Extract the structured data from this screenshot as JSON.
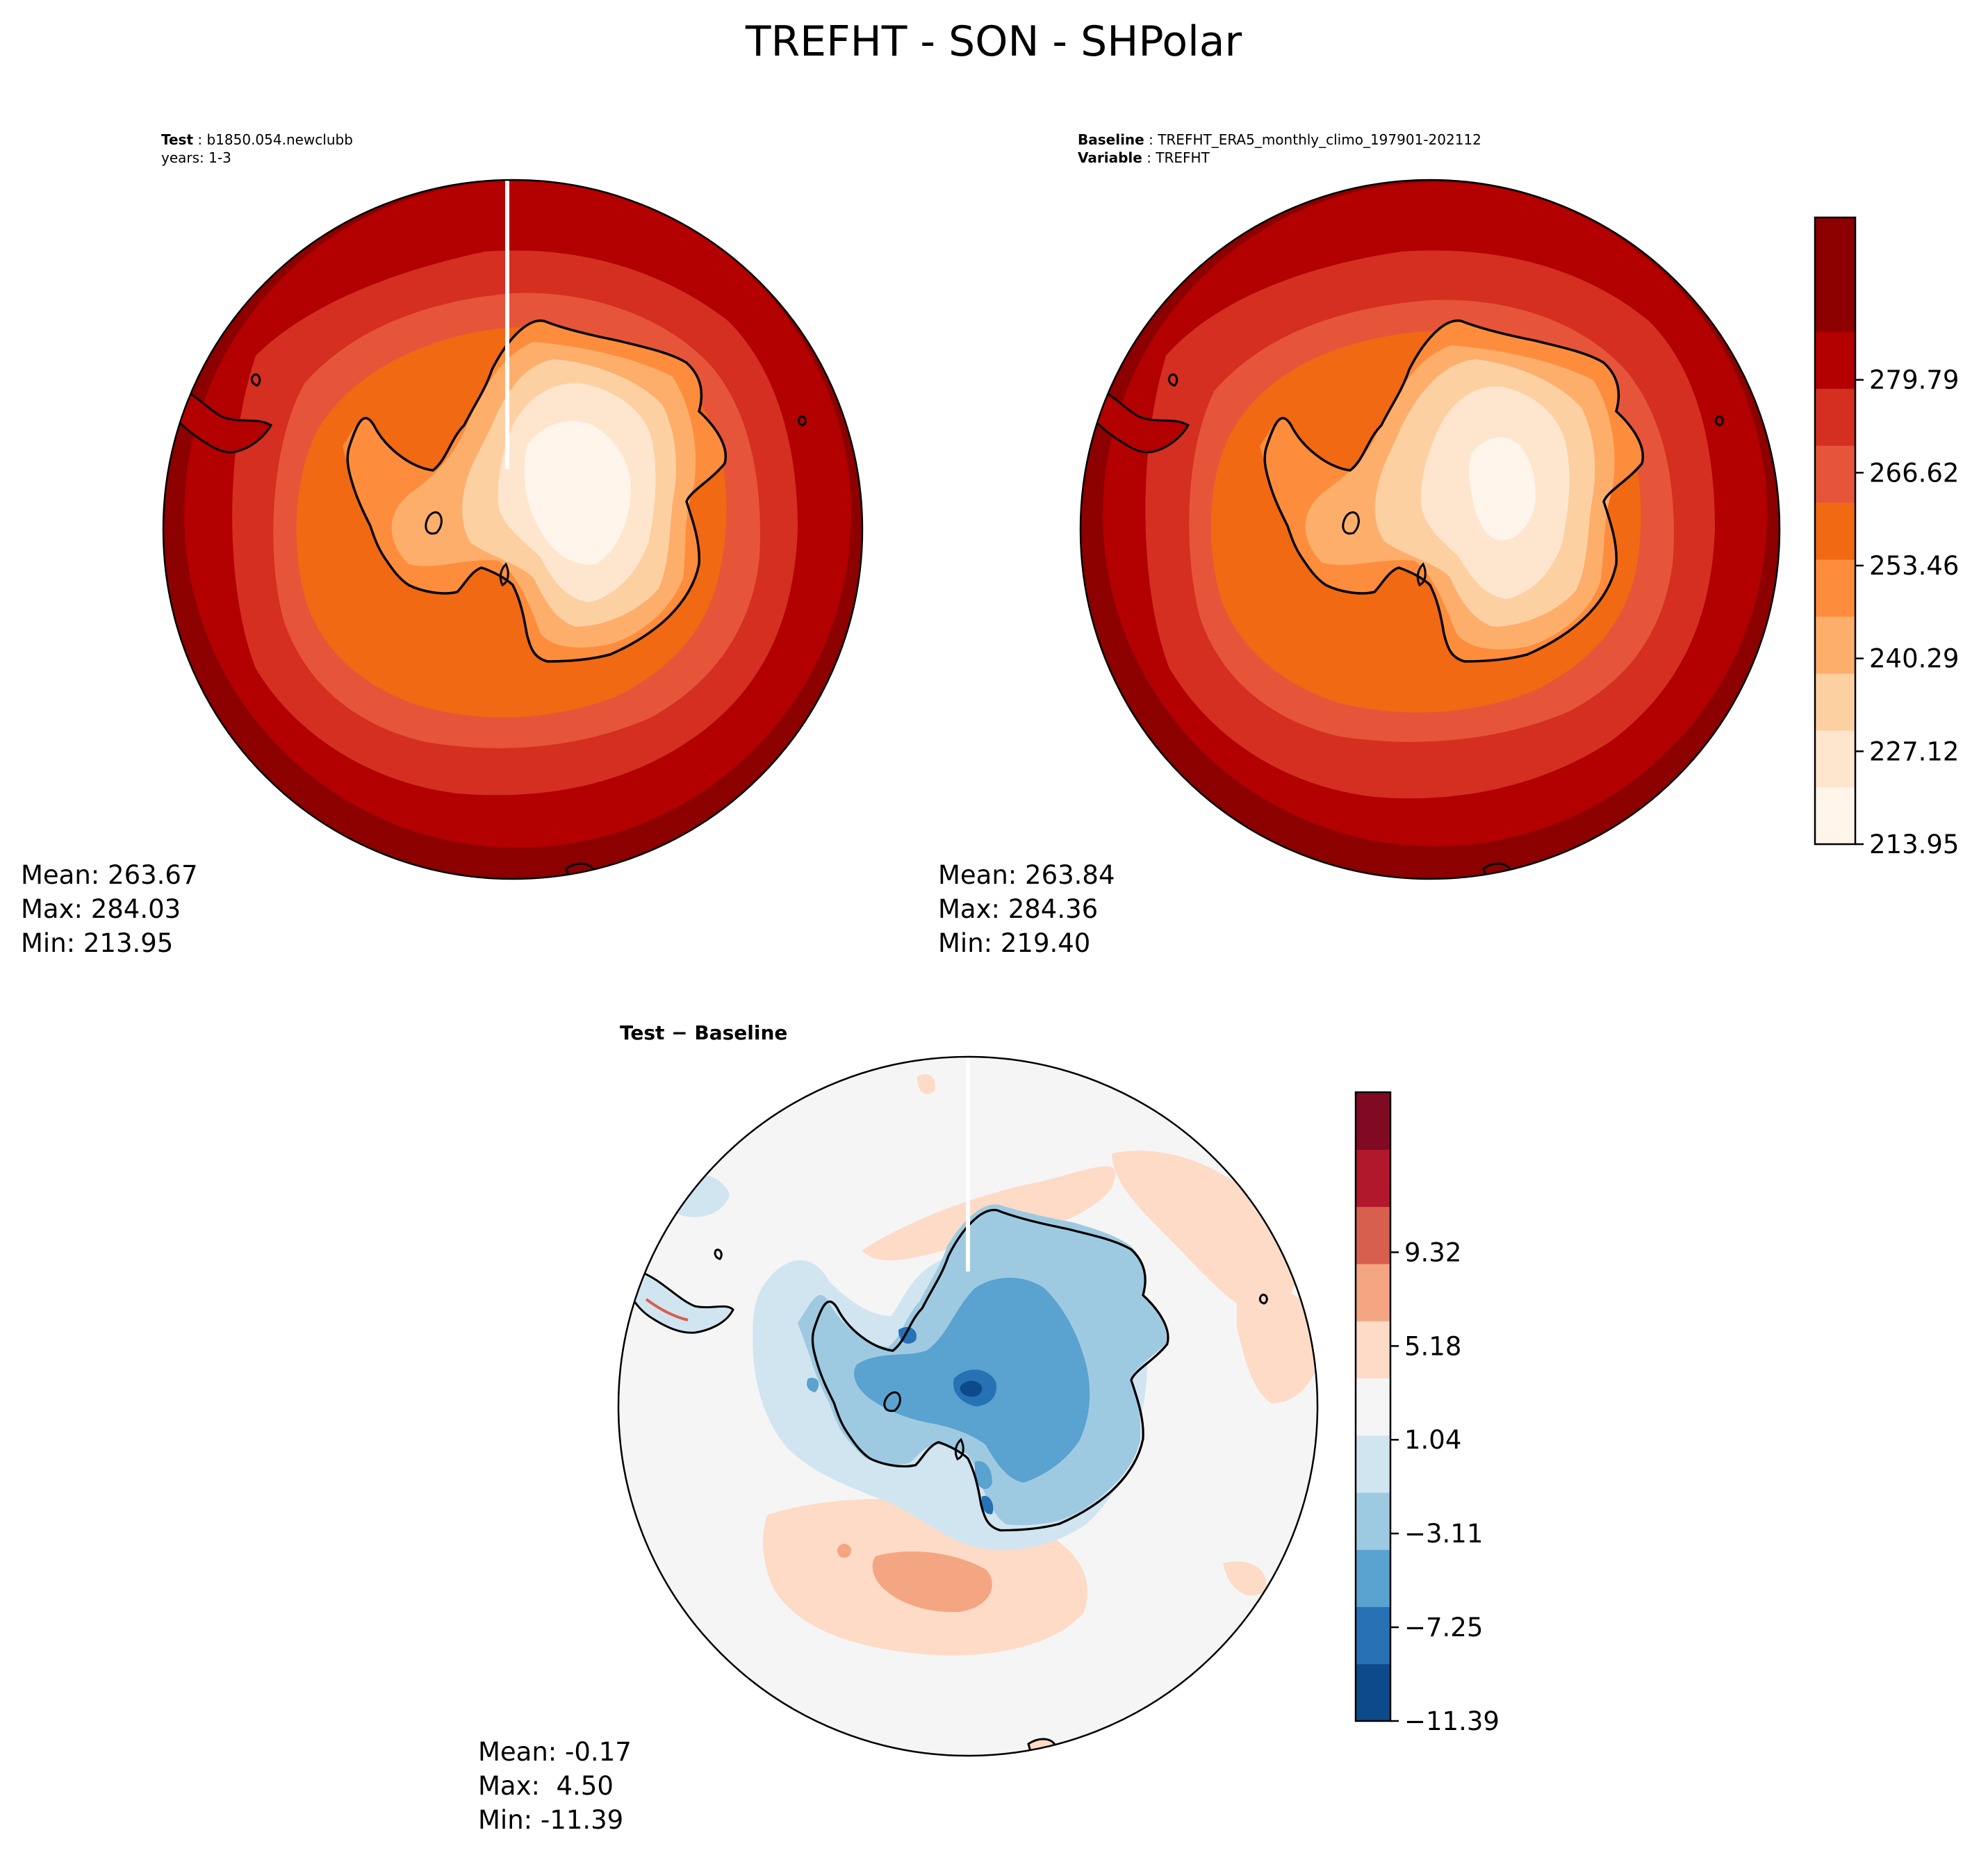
{
  "figure": {
    "title": "TREFHT - SON - SHPolar"
  },
  "panels": [
    {
      "id": "test",
      "meta": [
        {
          "key": "Test",
          "value": "b1850.054.newclubb"
        },
        {
          "key": "",
          "value": "years: 1-3"
        }
      ],
      "stats": {
        "mean": "Mean: 263.67",
        "max": "Max: 284.03",
        "min": "Min: 213.95"
      }
    },
    {
      "id": "baseline",
      "meta": [
        {
          "key": "Baseline",
          "value": "TREFHT_ERA5_monthly_climo_197901-202112"
        },
        {
          "key": "Variable",
          "value": "TREFHT"
        }
      ],
      "stats": {
        "mean": "Mean: 263.84",
        "max": "Max: 284.36",
        "min": "Min: 219.40"
      }
    },
    {
      "id": "diff",
      "title_bold": "Test − Baseline",
      "stats": {
        "mean": "Mean: -0.17",
        "max": "Max:  4.50",
        "min": "Min: -11.39"
      }
    }
  ],
  "colorbars": [
    {
      "id": "abs",
      "ticks": [
        "213.95",
        "227.12",
        "240.29",
        "253.46",
        "266.62",
        "279.79"
      ],
      "colors": [
        "#fff5eb",
        "#fee6ce",
        "#fdd0a2",
        "#fdae6b",
        "#fd8d3c",
        "#f16913",
        "#e6553a",
        "#d42f21",
        "#b30000",
        "#8c0000",
        "#8c0000"
      ]
    },
    {
      "id": "diff",
      "ticks": [
        "−11.39",
        "−7.25",
        "−3.11",
        "1.04",
        "5.18",
        "9.32"
      ],
      "colors": [
        "#0d4a8a",
        "#2771b5",
        "#5aa2cf",
        "#9ecae1",
        "#d1e5f0",
        "#f5f5f5",
        "#fddbc7",
        "#f4a582",
        "#d6604d",
        "#b2182b",
        "#7f0a22"
      ]
    }
  ],
  "chart_data": {
    "type": "map",
    "title": "TREFHT - SON - SHPolar",
    "projection": "south polar stereographic",
    "maps": [
      {
        "name": "Test",
        "case": "b1850.054.newclubb",
        "years": "1-3",
        "mean": 263.67,
        "max": 284.03,
        "min": 213.95
      },
      {
        "name": "Baseline",
        "case": "TREFHT_ERA5_monthly_climo_197901-202112",
        "variable": "TREFHT",
        "mean": 263.84,
        "max": 284.36,
        "min": 219.4
      },
      {
        "name": "Test − Baseline",
        "mean": -0.17,
        "max": 4.5,
        "min": -11.39
      }
    ],
    "abs_levels": [
      213.95,
      227.12,
      240.29,
      253.46,
      266.62,
      279.79
    ],
    "diff_levels": [
      -11.39,
      -7.25,
      -3.11,
      1.04,
      5.18,
      9.32
    ]
  }
}
